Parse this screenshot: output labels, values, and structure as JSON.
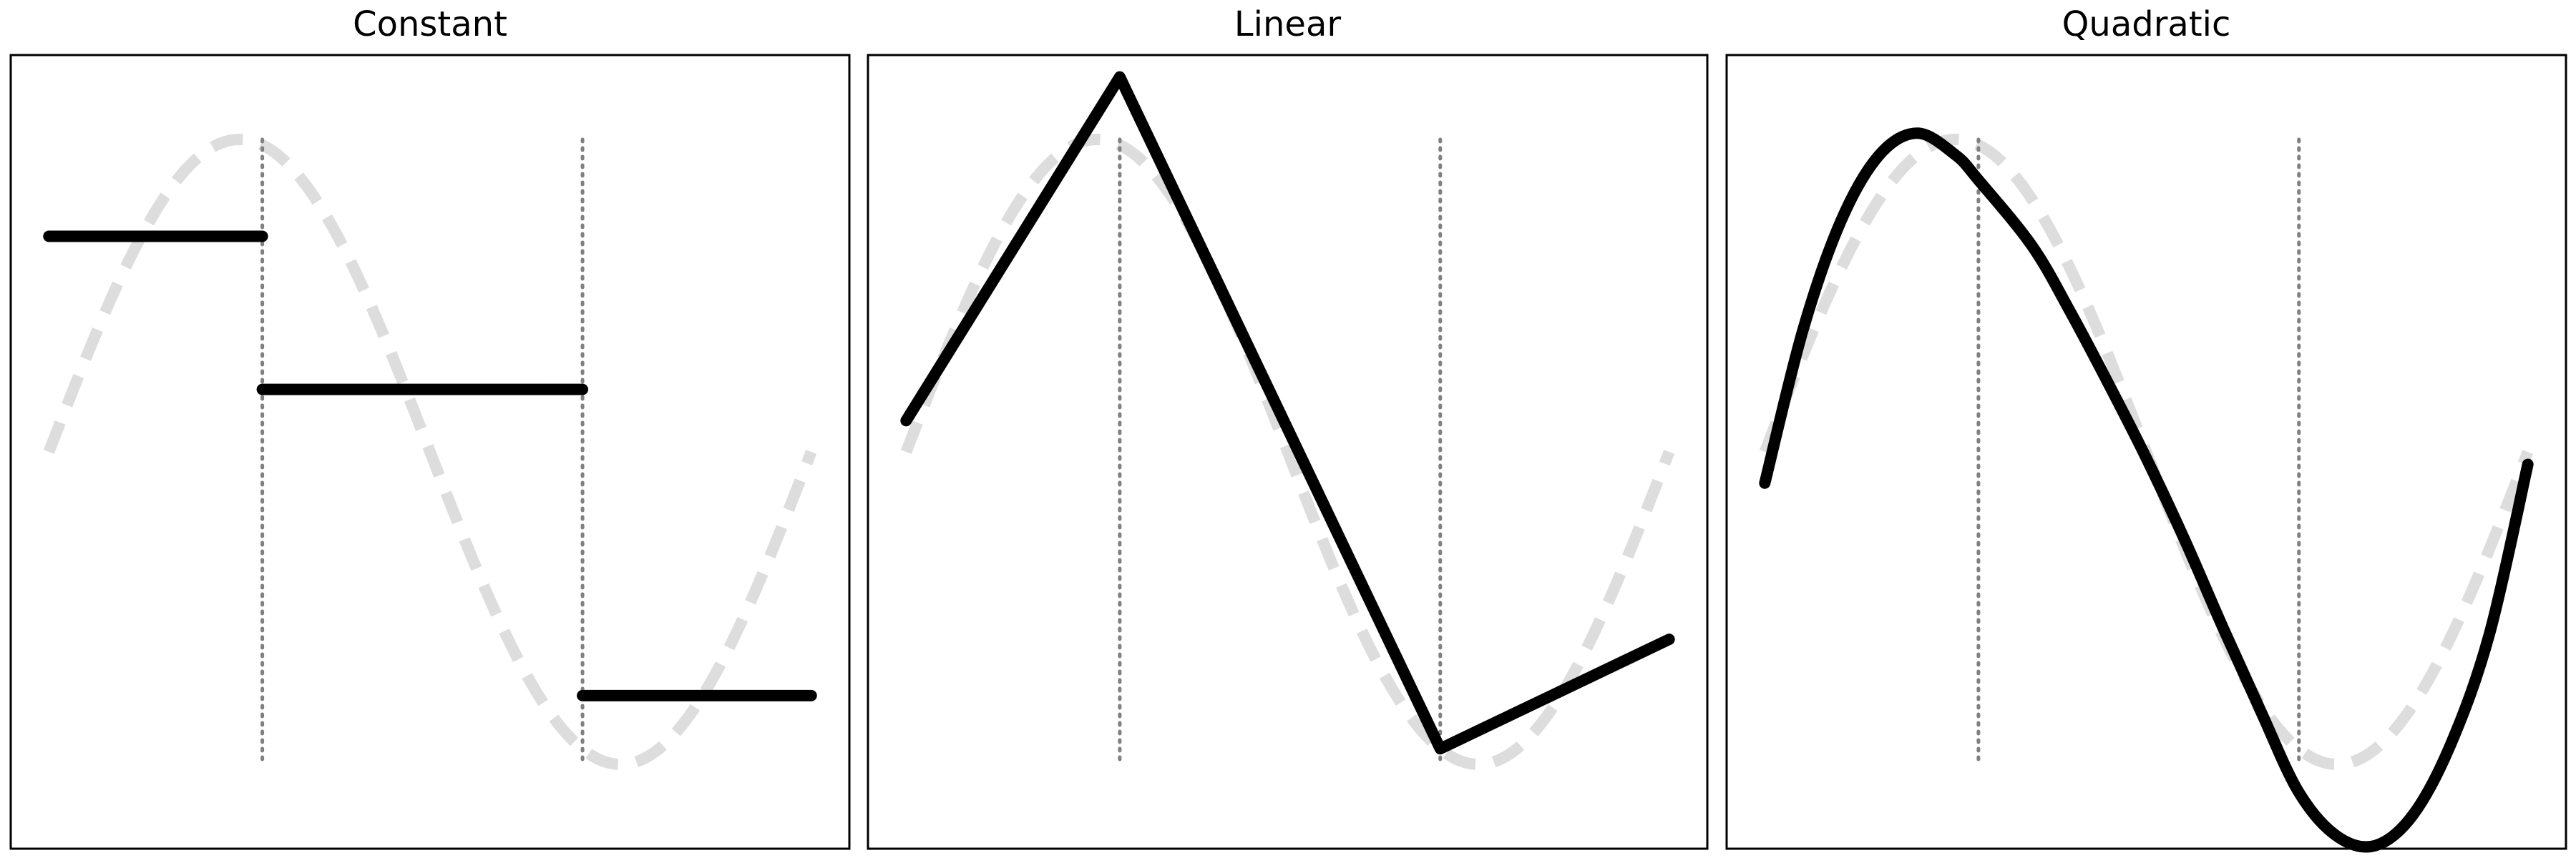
{
  "figure": {
    "panels": [
      {
        "id": "constant",
        "title": "Constant"
      },
      {
        "id": "linear",
        "title": "Linear"
      },
      {
        "id": "quadratic",
        "title": "Quadratic"
      }
    ]
  },
  "chart_data": [
    {
      "type": "line",
      "title": "Constant",
      "xlabel": "",
      "ylabel": "",
      "xlim": [
        -0.05,
        1.05
      ],
      "ylim": [
        -1.27,
        1.27
      ],
      "grid": false,
      "ticks": false,
      "knots": [
        0.28,
        0.7
      ],
      "reference": {
        "function": "sin",
        "formula": "y = sin(2*pi*x)",
        "x_range": [
          0,
          1
        ],
        "style": "dashed-light-gray"
      },
      "series": [
        {
          "segments": [
            {
              "x": [
                0,
                0.28
              ],
              "y": [
                0.69,
                0.69
              ]
            },
            {
              "x": [
                0.28,
                0.7
              ],
              "y": [
                0.2,
                0.2
              ]
            },
            {
              "x": [
                0.7,
                1.0
              ],
              "y": [
                -0.78,
                -0.78
              ]
            }
          ]
        }
      ]
    },
    {
      "type": "line",
      "title": "Linear",
      "xlabel": "",
      "ylabel": "",
      "xlim": [
        -0.05,
        1.05
      ],
      "ylim": [
        -1.27,
        1.27
      ],
      "grid": false,
      "ticks": false,
      "knots": [
        0.28,
        0.7
      ],
      "reference": {
        "function": "sin",
        "formula": "y = sin(2*pi*x)",
        "x_range": [
          0,
          1
        ],
        "style": "dashed-light-gray"
      },
      "series": [
        {
          "x": [
            0,
            0.28,
            0.7,
            1.0
          ],
          "y": [
            0.1,
            1.2,
            -0.95,
            -0.6
          ]
        }
      ]
    },
    {
      "type": "line",
      "title": "Quadratic",
      "xlabel": "",
      "ylabel": "",
      "xlim": [
        -0.05,
        1.05
      ],
      "ylim": [
        -1.27,
        1.27
      ],
      "grid": false,
      "ticks": false,
      "knots": [
        0.28,
        0.7
      ],
      "reference": {
        "function": "sin",
        "formula": "y = sin(2*pi*x)",
        "x_range": [
          0,
          1
        ],
        "style": "dashed-light-gray"
      },
      "series": [
        {
          "x": [
            0,
            0.05,
            0.1,
            0.15,
            0.2,
            0.25,
            0.28,
            0.35,
            0.4,
            0.45,
            0.5,
            0.55,
            0.6,
            0.65,
            0.7,
            0.75,
            0.8,
            0.85,
            0.9,
            0.95,
            1.0
          ],
          "y": [
            -0.1,
            0.39,
            0.74,
            0.95,
            1.02,
            0.95,
            0.87,
            0.66,
            0.45,
            0.22,
            -0.02,
            -0.28,
            -0.56,
            -0.83,
            -1.09,
            -1.23,
            -1.26,
            -1.16,
            -0.93,
            -0.58,
            -0.04
          ]
        }
      ]
    }
  ]
}
